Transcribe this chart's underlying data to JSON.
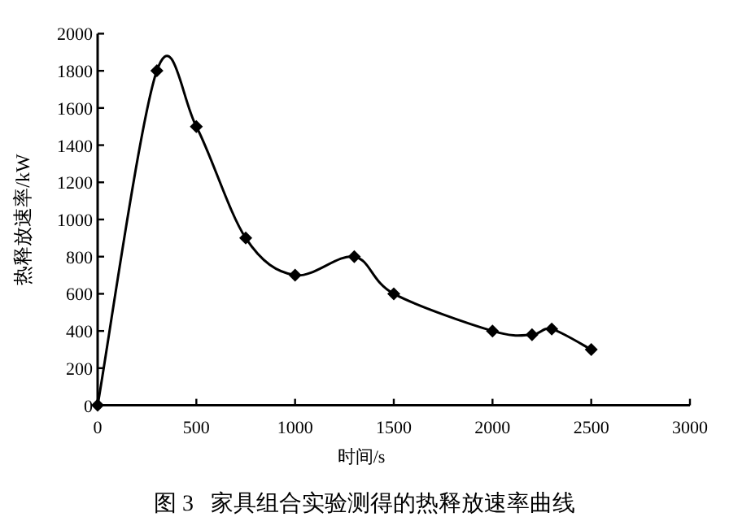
{
  "chart_data": {
    "type": "line",
    "title": "图 3   家具组合实验测得的热释放速率曲线",
    "xlabel": "时间/s",
    "ylabel": "热释放速率/kW",
    "x": [
      0,
      300,
      500,
      750,
      1000,
      1300,
      1500,
      2000,
      2200,
      2300,
      2500
    ],
    "series": [
      {
        "color": "#000000",
        "values": [
          0,
          1800,
          1500,
          900,
          700,
          800,
          600,
          400,
          380,
          410,
          300
        ]
      }
    ],
    "xlim": [
      0,
      3000
    ],
    "ylim": [
      0,
      2000
    ],
    "xticks": [
      0,
      500,
      1000,
      1500,
      2000,
      2500,
      3000
    ],
    "yticks": [
      0,
      200,
      400,
      600,
      800,
      1000,
      1200,
      1400,
      1600,
      1800,
      2000
    ],
    "marker": "diamond",
    "line_style": "solid",
    "grid": false
  }
}
